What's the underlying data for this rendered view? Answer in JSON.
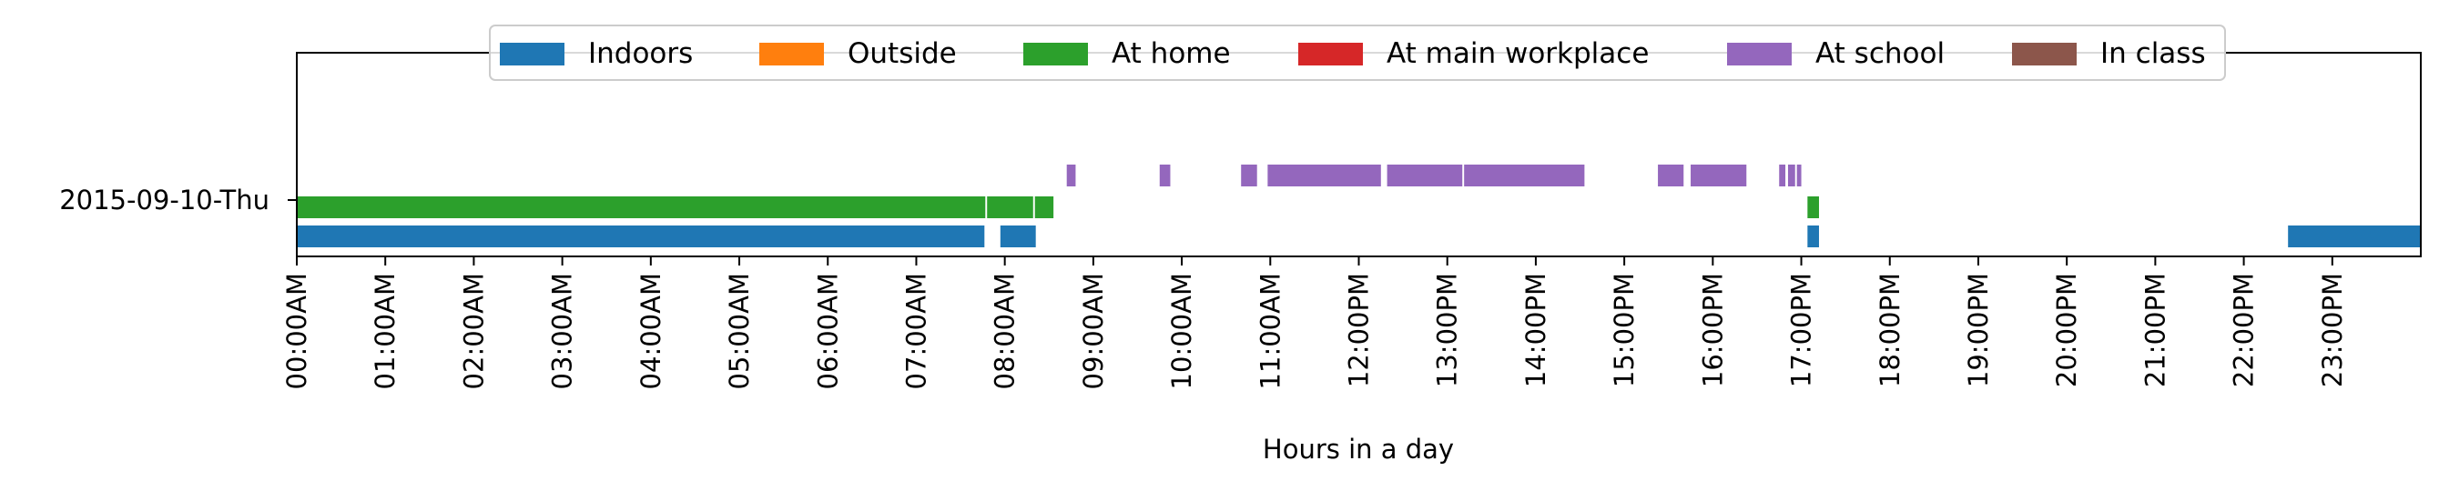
{
  "chart_data": {
    "type": "timeline",
    "xlabel": "Hours in a day",
    "ylabel": "",
    "xlim": [
      0,
      24
    ],
    "row_label": "2015-09-10-Thu",
    "x_ticks": [
      "00:00AM",
      "01:00AM",
      "02:00AM",
      "03:00AM",
      "04:00AM",
      "05:00AM",
      "06:00AM",
      "07:00AM",
      "08:00AM",
      "09:00AM",
      "10:00AM",
      "11:00AM",
      "12:00PM",
      "13:00PM",
      "14:00PM",
      "15:00PM",
      "16:00PM",
      "17:00PM",
      "18:00PM",
      "19:00PM",
      "20:00PM",
      "21:00PM",
      "22:00PM",
      "23:00PM"
    ],
    "legend_position": "top-center",
    "series": [
      {
        "name": "Indoors",
        "color": "#1f77b4",
        "lane": 0,
        "intervals": [
          [
            0.0,
            7.77
          ],
          [
            7.95,
            8.35
          ],
          [
            17.07,
            17.2
          ],
          [
            22.5,
            24.0
          ]
        ]
      },
      {
        "name": "Outside",
        "color": "#ff7f0e",
        "lane": 0,
        "intervals": []
      },
      {
        "name": "At home",
        "color": "#2ca02c",
        "lane": 1,
        "intervals": [
          [
            0.0,
            7.78
          ],
          [
            7.8,
            8.32
          ],
          [
            8.34,
            8.55
          ],
          [
            17.07,
            17.2
          ]
        ]
      },
      {
        "name": "At main workplace",
        "color": "#d62728",
        "lane": 1,
        "intervals": []
      },
      {
        "name": "At school",
        "color": "#9467bd",
        "lane": 2,
        "intervals": [
          [
            8.7,
            8.8
          ],
          [
            9.75,
            9.87
          ],
          [
            10.67,
            10.85
          ],
          [
            10.97,
            12.25
          ],
          [
            12.32,
            13.17
          ],
          [
            13.19,
            14.55
          ],
          [
            15.38,
            15.67
          ],
          [
            15.75,
            16.38
          ],
          [
            16.75,
            16.82
          ],
          [
            16.85,
            16.93
          ],
          [
            16.95,
            17.0
          ]
        ]
      },
      {
        "name": "In class",
        "color": "#8c564b",
        "lane": 2,
        "intervals": []
      }
    ]
  }
}
